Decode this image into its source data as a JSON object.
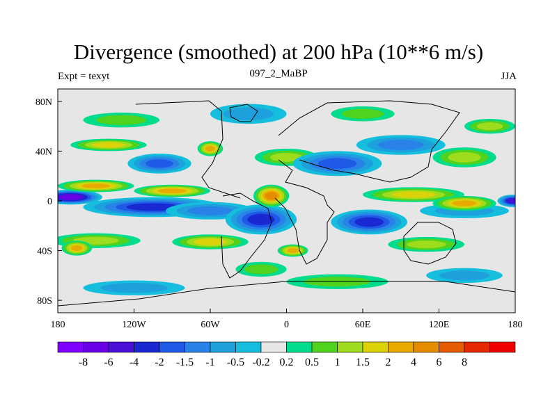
{
  "chart_data": {
    "type": "heatmap",
    "title": "Divergence (smoothed) at 200 hPa (10**6 m/s)",
    "subtitle_left": "Expt = texyt",
    "subtitle_center": "097_2_MaBP",
    "subtitle_right": "JJA",
    "xlim": [
      -180,
      180
    ],
    "ylim": [
      -90,
      90
    ],
    "x_ticks": [
      {
        "value": -180,
        "label": "180"
      },
      {
        "value": -120,
        "label": "120W"
      },
      {
        "value": -60,
        "label": "60W"
      },
      {
        "value": 0,
        "label": "0"
      },
      {
        "value": 60,
        "label": "60E"
      },
      {
        "value": 120,
        "label": "120E"
      },
      {
        "value": 180,
        "label": "180"
      }
    ],
    "y_ticks": [
      {
        "value": 80,
        "label": "80N"
      },
      {
        "value": 40,
        "label": "40N"
      },
      {
        "value": 0,
        "label": "0"
      },
      {
        "value": -40,
        "label": "40S"
      },
      {
        "value": -80,
        "label": "80S"
      }
    ],
    "colorbar": {
      "colors": [
        "#7f00ff",
        "#6a00e6",
        "#4b10d8",
        "#1a28d2",
        "#1e5ae6",
        "#2882e8",
        "#1ea0dc",
        "#14bedc",
        "#e6e6e6",
        "#00dc8c",
        "#50d21e",
        "#a0dc1e",
        "#dcd20a",
        "#e6aa00",
        "#e68c00",
        "#e65a00",
        "#e62800",
        "#f00000"
      ],
      "levels": [
        "-8",
        "-6",
        "-4",
        "-2",
        "-1.5",
        "-1",
        "-0.5",
        "-0.2",
        "0.2",
        "0.5",
        "1",
        "1.5",
        "2",
        "4",
        "6",
        "8"
      ]
    },
    "anomalies": [
      {
        "lon": -170,
        "lat": 3,
        "value": -6,
        "rx": 25,
        "ry": 6
      },
      {
        "lon": -105,
        "lat": -5,
        "value": -3,
        "rx": 55,
        "ry": 8
      },
      {
        "lon": -60,
        "lat": -8,
        "value": -1.2,
        "rx": 35,
        "ry": 7
      },
      {
        "lon": -20,
        "lat": -15,
        "value": -2.5,
        "rx": 28,
        "ry": 12
      },
      {
        "lon": 65,
        "lat": -17,
        "value": -2.2,
        "rx": 30,
        "ry": 10
      },
      {
        "lon": 140,
        "lat": -8,
        "value": -0.8,
        "rx": 35,
        "ry": 6
      },
      {
        "lon": 178,
        "lat": 0,
        "value": -4.5,
        "rx": 12,
        "ry": 5
      },
      {
        "lon": -150,
        "lat": 12,
        "value": 3,
        "rx": 30,
        "ry": 5
      },
      {
        "lon": -90,
        "lat": 8,
        "value": 2.2,
        "rx": 30,
        "ry": 5
      },
      {
        "lon": -12,
        "lat": 4,
        "value": 5.5,
        "rx": 14,
        "ry": 9
      },
      {
        "lon": 100,
        "lat": 5,
        "value": 1.8,
        "rx": 40,
        "ry": 6
      },
      {
        "lon": 140,
        "lat": -2,
        "value": 3.5,
        "rx": 25,
        "ry": 6
      },
      {
        "lon": -150,
        "lat": -32,
        "value": 1.4,
        "rx": 35,
        "ry": 6
      },
      {
        "lon": -60,
        "lat": -33,
        "value": 1.6,
        "rx": 30,
        "ry": 6
      },
      {
        "lon": 5,
        "lat": -40,
        "value": 2.3,
        "rx": 12,
        "ry": 5
      },
      {
        "lon": 110,
        "lat": -35,
        "value": 1.2,
        "rx": 30,
        "ry": 6
      },
      {
        "lon": -165,
        "lat": -38,
        "value": 2.8,
        "rx": 12,
        "ry": 6
      },
      {
        "lon": -140,
        "lat": 45,
        "value": 1.5,
        "rx": 30,
        "ry": 5
      },
      {
        "lon": -100,
        "lat": 30,
        "value": -1.5,
        "rx": 25,
        "ry": 8
      },
      {
        "lon": -60,
        "lat": 42,
        "value": 2.5,
        "rx": 10,
        "ry": 6
      },
      {
        "lon": 0,
        "lat": 35,
        "value": 1.3,
        "rx": 25,
        "ry": 7
      },
      {
        "lon": 40,
        "lat": 30,
        "value": -1.8,
        "rx": 35,
        "ry": 10
      },
      {
        "lon": 90,
        "lat": 45,
        "value": -1.2,
        "rx": 35,
        "ry": 8
      },
      {
        "lon": 140,
        "lat": 35,
        "value": 1.0,
        "rx": 25,
        "ry": 8
      },
      {
        "lon": 160,
        "lat": 60,
        "value": 1.2,
        "rx": 20,
        "ry": 6
      },
      {
        "lon": -130,
        "lat": 65,
        "value": 0.6,
        "rx": 30,
        "ry": 6
      },
      {
        "lon": -30,
        "lat": 70,
        "value": -0.8,
        "rx": 30,
        "ry": 8
      },
      {
        "lon": 60,
        "lat": 70,
        "value": 0.8,
        "rx": 25,
        "ry": 6
      },
      {
        "lon": -120,
        "lat": -70,
        "value": -0.7,
        "rx": 40,
        "ry": 6
      },
      {
        "lon": 40,
        "lat": -65,
        "value": 0.7,
        "rx": 40,
        "ry": 6
      },
      {
        "lon": 140,
        "lat": -60,
        "value": -0.6,
        "rx": 30,
        "ry": 6
      },
      {
        "lon": -20,
        "lat": -55,
        "value": 0.8,
        "rx": 20,
        "ry": 6
      }
    ]
  }
}
